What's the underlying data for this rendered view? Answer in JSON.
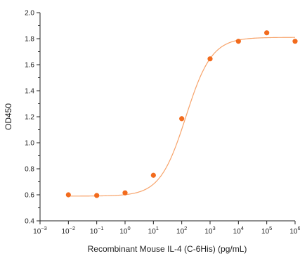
{
  "chart_data": {
    "type": "scatter",
    "xlabel": "Recombinant Mouse IL-4 (C-6His) (pg/mL)",
    "ylabel": "OD450",
    "x_scale": "log",
    "xlim": [
      0.001,
      1000000
    ],
    "ylim": [
      0.4,
      2.0
    ],
    "x_ticks": [
      {
        "value": 0.001,
        "base": "10",
        "exp": "−3"
      },
      {
        "value": 0.01,
        "base": "10",
        "exp": "−2"
      },
      {
        "value": 0.1,
        "base": "10",
        "exp": "−1"
      },
      {
        "value": 1,
        "base": "10",
        "exp": "0"
      },
      {
        "value": 10,
        "base": "10",
        "exp": "1"
      },
      {
        "value": 100,
        "base": "10",
        "exp": "2"
      },
      {
        "value": 1000,
        "base": "10",
        "exp": "3"
      },
      {
        "value": 10000,
        "base": "10",
        "exp": "4"
      },
      {
        "value": 100000,
        "base": "10",
        "exp": "5"
      },
      {
        "value": 1000000,
        "base": "10",
        "exp": "6"
      }
    ],
    "y_ticks": [
      "0.4",
      "0.6",
      "0.8",
      "1.0",
      "1.2",
      "1.4",
      "1.6",
      "1.8",
      "2.0"
    ],
    "grid": false,
    "colors": {
      "points": "#f26b1d",
      "curve": "#f7a36a",
      "axis": "#222222"
    },
    "points": [
      {
        "x": 0.01,
        "y": 0.6
      },
      {
        "x": 0.1,
        "y": 0.595
      },
      {
        "x": 1,
        "y": 0.615
      },
      {
        "x": 10,
        "y": 0.75
      },
      {
        "x": 100,
        "y": 1.185
      },
      {
        "x": 1000,
        "y": 1.645
      },
      {
        "x": 10000,
        "y": 1.78
      },
      {
        "x": 100000,
        "y": 1.845
      },
      {
        "x": 1000000,
        "y": 1.78
      }
    ],
    "fit": {
      "model": "4PL",
      "bottom": 0.59,
      "top": 1.81,
      "ec50": 140,
      "hill": 0.95
    }
  }
}
